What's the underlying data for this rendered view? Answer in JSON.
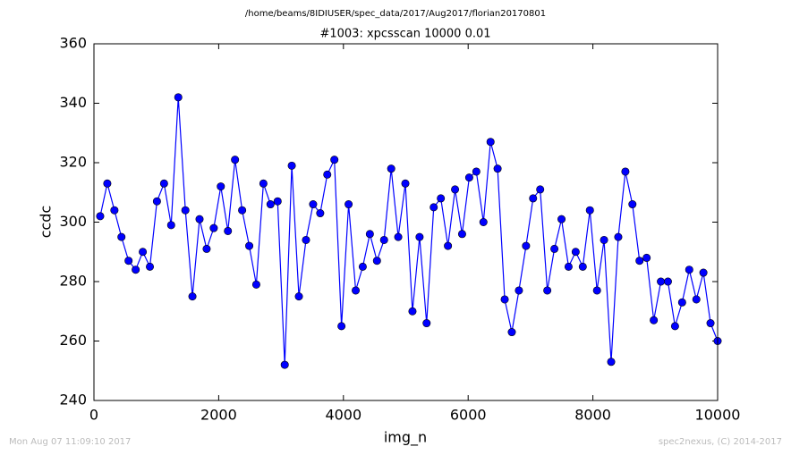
{
  "chart_data": {
    "type": "line",
    "suptitle": "/home/beams/8IDIUSER/spec_data/2017/Aug2017/florian20170801",
    "title": "#1003: xpcsscan 10000 0.01",
    "xlabel": "img_n",
    "ylabel": "ccdc",
    "annotations": [
      "Mon Aug 07 11:09:10 2017",
      "spec2nexus, (C) 2014-2017"
    ],
    "x": [
      100,
      214,
      328,
      441,
      555,
      669,
      783,
      897,
      1010,
      1124,
      1238,
      1352,
      1466,
      1579,
      1693,
      1807,
      1921,
      2034,
      2148,
      2262,
      2376,
      2490,
      2603,
      2717,
      2831,
      2945,
      3059,
      3172,
      3286,
      3400,
      3514,
      3628,
      3741,
      3855,
      3969,
      4083,
      4197,
      4310,
      4424,
      4538,
      4652,
      4766,
      4879,
      4993,
      5107,
      5221,
      5334,
      5448,
      5562,
      5676,
      5790,
      5903,
      6017,
      6131,
      6245,
      6359,
      6472,
      6586,
      6700,
      6814,
      6928,
      7041,
      7155,
      7269,
      7383,
      7497,
      7610,
      7724,
      7838,
      7952,
      8066,
      8179,
      8293,
      8407,
      8521,
      8634,
      8748,
      8862,
      8976,
      9090,
      9203,
      9317,
      9431,
      9545,
      9659,
      9772,
      9886,
      10000
    ],
    "values": [
      302,
      313,
      304,
      295,
      287,
      284,
      290,
      285,
      307,
      313,
      299,
      342,
      304,
      275,
      301,
      291,
      298,
      312,
      297,
      321,
      304,
      292,
      279,
      313,
      306,
      307,
      252,
      319,
      275,
      294,
      306,
      303,
      316,
      321,
      265,
      306,
      277,
      285,
      296,
      287,
      294,
      318,
      295,
      313,
      270,
      295,
      266,
      305,
      308,
      292,
      311,
      296,
      315,
      317,
      300,
      327,
      318,
      274,
      263,
      277,
      292,
      308,
      311,
      277,
      291,
      301,
      285,
      290,
      285,
      304,
      277,
      294,
      253,
      295,
      317,
      306,
      287,
      288,
      267,
      280,
      280,
      265,
      273,
      284,
      274,
      283,
      266,
      260
    ],
    "color": "#0000ff",
    "xlim": [
      0,
      10000
    ],
    "xticks": [
      0,
      2000,
      4000,
      6000,
      8000,
      10000
    ],
    "ylim": [
      240,
      360
    ],
    "yticks": [
      240,
      260,
      280,
      300,
      320,
      340,
      360
    ],
    "grid": false
  }
}
